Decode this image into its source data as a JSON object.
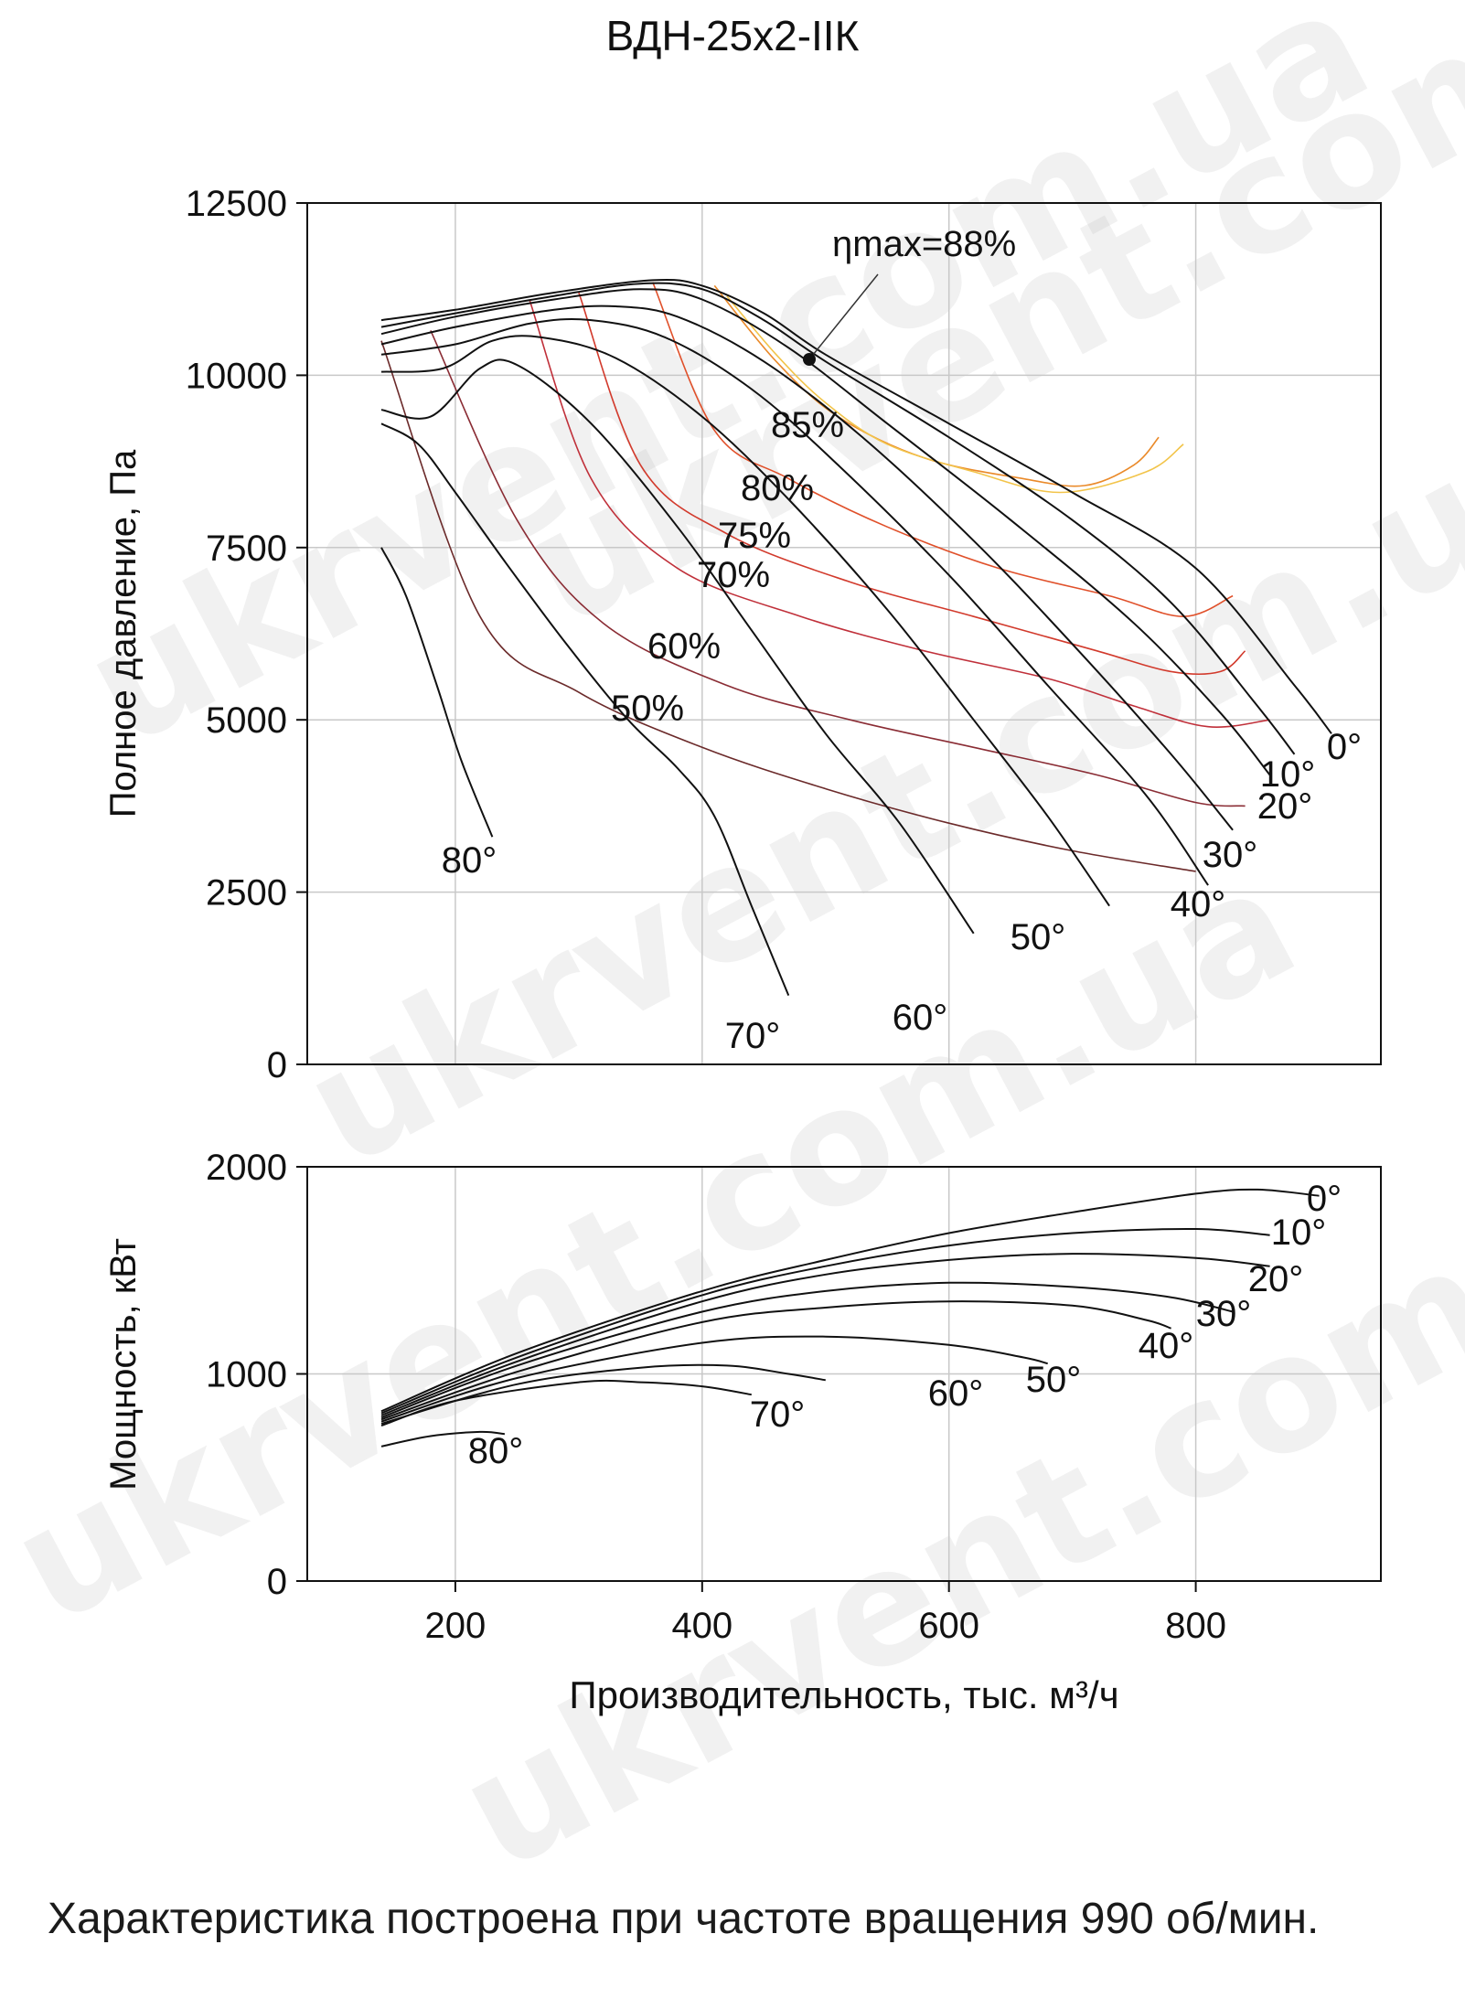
{
  "watermarks": [
    "ukrvent.com.ua",
    "ukrvent.com.ua",
    "ukrvent.com.ua",
    "ukrvent.com.ua",
    "ukrvent.com.ua"
  ],
  "note": {
    "text": "Характеристика построена при частоте вращения 990 об/мин."
  },
  "chart_data": [
    {
      "type": "line",
      "title": "ВДН-25х2-IIК",
      "xlabel": "Производительность, тыс. м³/ч",
      "ylabel": "Полное давление, Па",
      "xlim": [
        80,
        950
      ],
      "ylim": [
        0,
        12500
      ],
      "xticks": [
        "200",
        "400",
        "600",
        "800"
      ],
      "yticks": [
        "12500",
        "10000",
        "7500",
        "5000",
        "2500",
        "0"
      ],
      "grid": true,
      "series": [
        {
          "name": "0°",
          "label": "0°",
          "points": [
            [
              140,
              10800
            ],
            [
              200,
              10950
            ],
            [
              280,
              11200
            ],
            [
              360,
              11380
            ],
            [
              400,
              11300
            ],
            [
              450,
              10900
            ],
            [
              500,
              10300
            ],
            [
              600,
              9300
            ],
            [
              700,
              8300
            ],
            [
              800,
              7200
            ],
            [
              880,
              5500
            ],
            [
              910,
              4800
            ]
          ]
        },
        {
          "name": "10°",
          "label": "10°",
          "points": [
            [
              140,
              10700
            ],
            [
              200,
              10900
            ],
            [
              280,
              11150
            ],
            [
              350,
              11330
            ],
            [
              400,
              11250
            ],
            [
              450,
              10800
            ],
            [
              500,
              10200
            ],
            [
              600,
              9100
            ],
            [
              700,
              7900
            ],
            [
              780,
              6700
            ],
            [
              850,
              5200
            ],
            [
              880,
              4500
            ]
          ]
        },
        {
          "name": "20°",
          "label": "20°",
          "points": [
            [
              140,
              10600
            ],
            [
              200,
              10850
            ],
            [
              280,
              11100
            ],
            [
              350,
              11250
            ],
            [
              400,
              11100
            ],
            [
              470,
              10400
            ],
            [
              550,
              9300
            ],
            [
              650,
              7900
            ],
            [
              750,
              6400
            ],
            [
              820,
              5100
            ],
            [
              860,
              4200
            ]
          ]
        },
        {
          "name": "30°",
          "label": "30°",
          "points": [
            [
              140,
              10450
            ],
            [
              200,
              10700
            ],
            [
              280,
              10950
            ],
            [
              330,
              11000
            ],
            [
              380,
              10850
            ],
            [
              450,
              10200
            ],
            [
              530,
              9100
            ],
            [
              620,
              7600
            ],
            [
              700,
              6100
            ],
            [
              780,
              4500
            ],
            [
              830,
              3400
            ]
          ]
        },
        {
          "name": "40°",
          "label": "40°",
          "points": [
            [
              140,
              10300
            ],
            [
              200,
              10450
            ],
            [
              260,
              10750
            ],
            [
              310,
              10800
            ],
            [
              370,
              10550
            ],
            [
              440,
              9800
            ],
            [
              510,
              8700
            ],
            [
              600,
              7100
            ],
            [
              680,
              5500
            ],
            [
              760,
              3900
            ],
            [
              810,
              2600
            ]
          ]
        },
        {
          "name": "50°",
          "label": "50°",
          "points": [
            [
              140,
              10050
            ],
            [
              190,
              10100
            ],
            [
              230,
              10500
            ],
            [
              270,
              10550
            ],
            [
              330,
              10250
            ],
            [
              400,
              9400
            ],
            [
              470,
              8200
            ],
            [
              550,
              6600
            ],
            [
              620,
              5000
            ],
            [
              680,
              3600
            ],
            [
              730,
              2300
            ]
          ]
        },
        {
          "name": "60°",
          "label": "60°",
          "points": [
            [
              140,
              9500
            ],
            [
              180,
              9400
            ],
            [
              220,
              10100
            ],
            [
              250,
              10150
            ],
            [
              310,
              9300
            ],
            [
              380,
              7800
            ],
            [
              440,
              6300
            ],
            [
              500,
              4800
            ],
            [
              560,
              3500
            ],
            [
              620,
              1900
            ]
          ]
        },
        {
          "name": "70°",
          "label": "70°",
          "points": [
            [
              140,
              9300
            ],
            [
              170,
              9000
            ],
            [
              200,
              8300
            ],
            [
              240,
              7300
            ],
            [
              290,
              6100
            ],
            [
              340,
              5000
            ],
            [
              380,
              4300
            ],
            [
              410,
              3600
            ],
            [
              440,
              2300
            ],
            [
              470,
              1000
            ]
          ]
        },
        {
          "name": "80°",
          "label": "80°",
          "points": [
            [
              140,
              7500
            ],
            [
              160,
              6800
            ],
            [
              185,
              5500
            ],
            [
              205,
              4400
            ],
            [
              230,
              3300
            ]
          ]
        }
      ],
      "efficiency_curves": [
        {
          "name": "50%",
          "label": "50%",
          "points": [
            [
              140,
              10500
            ],
            [
              220,
              6500
            ],
            [
              300,
              5400
            ],
            [
              400,
              4600
            ],
            [
              500,
              4000
            ],
            [
              600,
              3500
            ],
            [
              700,
              3100
            ],
            [
              800,
              2800
            ]
          ]
        },
        {
          "name": "60%",
          "label": "60%",
          "points": [
            [
              180,
              10650
            ],
            [
              250,
              7900
            ],
            [
              320,
              6400
            ],
            [
              420,
              5500
            ],
            [
              520,
              5000
            ],
            [
              620,
              4600
            ],
            [
              720,
              4200
            ],
            [
              800,
              3800
            ],
            [
              840,
              3750
            ]
          ]
        },
        {
          "name": "70%",
          "label": "70%",
          "points": [
            [
              260,
              11100
            ],
            [
              310,
              8500
            ],
            [
              380,
              7200
            ],
            [
              480,
              6500
            ],
            [
              580,
              6000
            ],
            [
              680,
              5600
            ],
            [
              750,
              5200
            ],
            [
              810,
              4900
            ],
            [
              860,
              5000
            ]
          ]
        },
        {
          "name": "75%",
          "label": "75%",
          "points": [
            [
              300,
              11200
            ],
            [
              350,
              8700
            ],
            [
              420,
              7700
            ],
            [
              520,
              7000
            ],
            [
              620,
              6500
            ],
            [
              720,
              6000
            ],
            [
              780,
              5700
            ],
            [
              820,
              5700
            ],
            [
              840,
              6000
            ]
          ]
        },
        {
          "name": "80%",
          "label": "80%",
          "points": [
            [
              360,
              11350
            ],
            [
              410,
              9200
            ],
            [
              470,
              8500
            ],
            [
              550,
              7800
            ],
            [
              640,
              7200
            ],
            [
              730,
              6800
            ],
            [
              790,
              6500
            ],
            [
              830,
              6800
            ]
          ]
        },
        {
          "name": "85%",
          "label": "85%",
          "points": [
            [
              410,
              11300
            ],
            [
              460,
              10200
            ],
            [
              510,
              9400
            ],
            [
              580,
              8800
            ],
            [
              660,
              8500
            ],
            [
              710,
              8400
            ],
            [
              750,
              8700
            ],
            [
              770,
              9100
            ]
          ]
        },
        {
          "name": "88%",
          "label": "88%",
          "points": [
            [
              420,
              11150
            ],
            [
              460,
              10300
            ],
            [
              500,
              9600
            ],
            [
              550,
              9000
            ],
            [
              620,
              8600
            ],
            [
              690,
              8300
            ],
            [
              760,
              8600
            ],
            [
              790,
              9000
            ]
          ]
        }
      ],
      "annotation": {
        "label": "ηmax=88%",
        "point": [
          509,
          10250
        ]
      }
    },
    {
      "type": "line",
      "xlabel": "Производительность, тыс. м³/ч",
      "ylabel": "Мощность, кВт",
      "xlim": [
        80,
        950
      ],
      "ylim": [
        0,
        2000
      ],
      "xticks": [
        "200",
        "400",
        "600",
        "800"
      ],
      "yticks": [
        "2000",
        "1000",
        "0"
      ],
      "grid": true,
      "series": [
        {
          "name": "0°",
          "label": "0°",
          "points": [
            [
              140,
              820
            ],
            [
              250,
              1100
            ],
            [
              400,
              1400
            ],
            [
              500,
              1550
            ],
            [
              600,
              1680
            ],
            [
              700,
              1780
            ],
            [
              800,
              1870
            ],
            [
              850,
              1890
            ],
            [
              900,
              1860
            ]
          ]
        },
        {
          "name": "10°",
          "label": "10°",
          "points": [
            [
              140,
              810
            ],
            [
              250,
              1080
            ],
            [
              400,
              1380
            ],
            [
              500,
              1520
            ],
            [
              600,
              1620
            ],
            [
              700,
              1680
            ],
            [
              800,
              1700
            ],
            [
              860,
              1670
            ]
          ]
        },
        {
          "name": "20°",
          "label": "20°",
          "points": [
            [
              140,
              800
            ],
            [
              250,
              1060
            ],
            [
              400,
              1350
            ],
            [
              500,
              1480
            ],
            [
              600,
              1550
            ],
            [
              700,
              1580
            ],
            [
              800,
              1560
            ],
            [
              860,
              1520
            ]
          ]
        },
        {
          "name": "30°",
          "label": "30°",
          "points": [
            [
              140,
              790
            ],
            [
              250,
              1040
            ],
            [
              400,
              1300
            ],
            [
              500,
              1400
            ],
            [
              600,
              1440
            ],
            [
              700,
              1420
            ],
            [
              780,
              1370
            ],
            [
              830,
              1300
            ]
          ]
        },
        {
          "name": "40°",
          "label": "40°",
          "points": [
            [
              140,
              780
            ],
            [
              250,
              1010
            ],
            [
              400,
              1250
            ],
            [
              500,
              1320
            ],
            [
              600,
              1350
            ],
            [
              700,
              1330
            ],
            [
              760,
              1260
            ],
            [
              780,
              1220
            ]
          ]
        },
        {
          "name": "50°",
          "label": "50°",
          "points": [
            [
              140,
              770
            ],
            [
              250,
              980
            ],
            [
              400,
              1150
            ],
            [
              500,
              1180
            ],
            [
              600,
              1140
            ],
            [
              660,
              1080
            ],
            [
              680,
              1050
            ]
          ]
        },
        {
          "name": "60°",
          "label": "60°",
          "points": [
            [
              140,
              760
            ],
            [
              250,
              950
            ],
            [
              350,
              1030
            ],
            [
              420,
              1040
            ],
            [
              470,
              1000
            ],
            [
              500,
              970
            ]
          ]
        },
        {
          "name": "70°",
          "label": "70°",
          "points": [
            [
              140,
              750
            ],
            [
              200,
              870
            ],
            [
              300,
              960
            ],
            [
              350,
              960
            ],
            [
              400,
              940
            ],
            [
              440,
              900
            ]
          ]
        },
        {
          "name": "80°",
          "label": "80°",
          "points": [
            [
              140,
              650
            ],
            [
              180,
              700
            ],
            [
              220,
              720
            ],
            [
              240,
              710
            ]
          ]
        }
      ]
    }
  ]
}
